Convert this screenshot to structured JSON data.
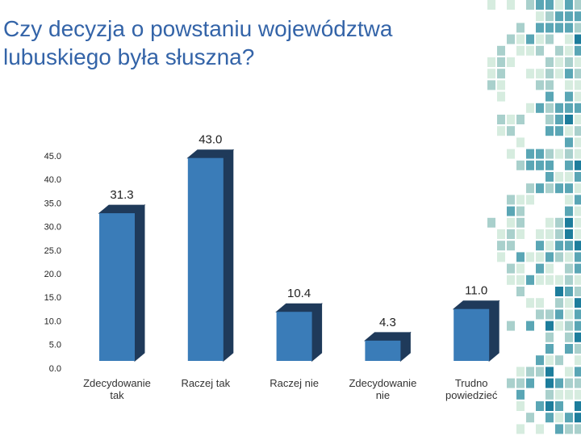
{
  "chart_data": {
    "type": "bar3d",
    "title": "Czy decyzja o powstaniu województwa lubuskiego była słuszna?",
    "categories": [
      "Zdecydowanie tak",
      "Raczej tak",
      "Raczej nie",
      "Zdecydowanie nie",
      "Trudno powiedzieć"
    ],
    "values": [
      31.3,
      43.0,
      10.4,
      4.3,
      11.0
    ],
    "value_labels": [
      "31.3",
      "43.0",
      "10.4",
      "4.3",
      "11.0"
    ],
    "color": "#3a7cb8",
    "side_color": "#1f3a5a",
    "ylim": [
      0,
      45
    ],
    "yticks": [
      {
        "value": 0,
        "label": "0.0"
      },
      {
        "value": 5,
        "label": "5.0"
      },
      {
        "value": 10,
        "label": "10.0"
      },
      {
        "value": 15,
        "label": "15.0"
      },
      {
        "value": 20,
        "label": "20.0"
      },
      {
        "value": 25,
        "label": "25.0"
      },
      {
        "value": 30,
        "label": "30.0"
      },
      {
        "value": 35,
        "label": "35.0"
      },
      {
        "value": 40,
        "label": "40.0"
      },
      {
        "value": 45,
        "label": "45.0"
      }
    ],
    "grid": false
  }
}
